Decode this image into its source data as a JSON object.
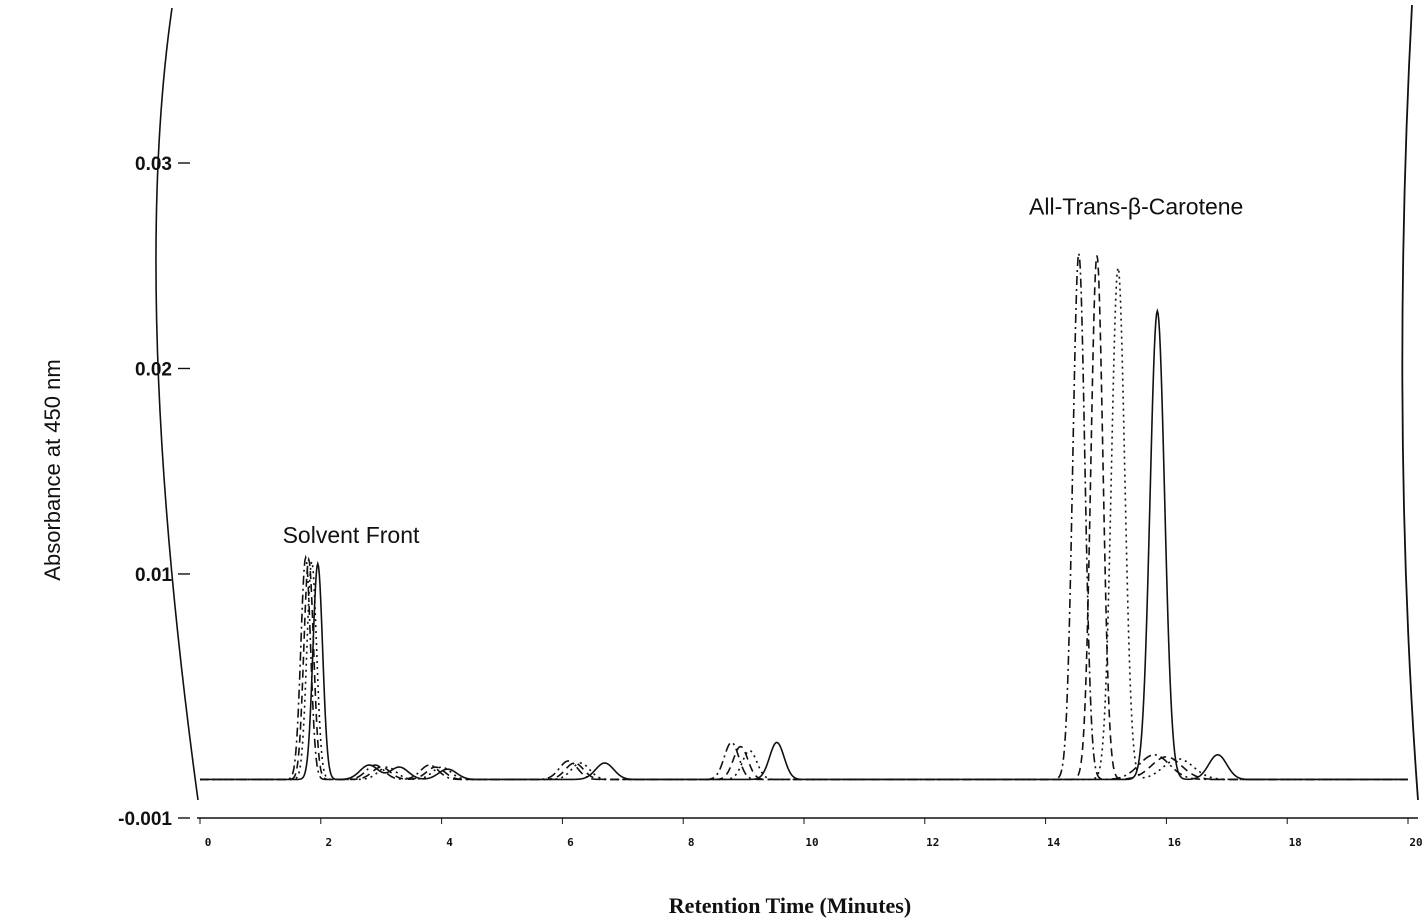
{
  "chart_data": {
    "type": "line",
    "xlabel": "Retention Time (Minutes)",
    "ylabel": "Absorbance at 450 nm",
    "xlim": [
      0,
      20
    ],
    "ylim": [
      -0.001,
      0.03
    ],
    "x_ticks": [
      {
        "value": 0,
        "label": "0"
      },
      {
        "value": 2,
        "label": "2"
      },
      {
        "value": 4,
        "label": "4"
      },
      {
        "value": 6,
        "label": "6"
      },
      {
        "value": 8,
        "label": "8"
      },
      {
        "value": 10,
        "label": "10"
      },
      {
        "value": 12,
        "label": "12"
      },
      {
        "value": 14,
        "label": "14"
      },
      {
        "value": 16,
        "label": "16"
      },
      {
        "value": 18,
        "label": "18"
      },
      {
        "value": 20,
        "label": "20"
      }
    ],
    "y_ticks": [
      {
        "value": -0.001,
        "label": "-0.001"
      },
      {
        "value": 0.01,
        "label": "0.01"
      },
      {
        "value": 0.02,
        "label": "0.02"
      },
      {
        "value": 0.03,
        "label": "0.03"
      }
    ],
    "annotations": [
      {
        "text": "Solvent Front",
        "x": 2.5,
        "y": 0.0115
      },
      {
        "text": "All-Trans-β-Carotene",
        "x": 15.5,
        "y": 0.0275
      }
    ],
    "baseline": 0.0,
    "series": [
      {
        "style": "dash-dot",
        "color": "#111111",
        "peaks": [
          {
            "x": 1.75,
            "height": 0.0108,
            "width": 0.08
          },
          {
            "x": 2.9,
            "height": 0.0007,
            "width": 0.15
          },
          {
            "x": 3.8,
            "height": 0.0007,
            "width": 0.15
          },
          {
            "x": 6.1,
            "height": 0.0009,
            "width": 0.15
          },
          {
            "x": 8.8,
            "height": 0.0018,
            "width": 0.12
          },
          {
            "x": 14.55,
            "height": 0.0256,
            "width": 0.1
          },
          {
            "x": 15.8,
            "height": 0.0012,
            "width": 0.25
          }
        ]
      },
      {
        "style": "dashed",
        "color": "#111111",
        "peaks": [
          {
            "x": 1.8,
            "height": 0.0107,
            "width": 0.08
          },
          {
            "x": 3.0,
            "height": 0.0006,
            "width": 0.15
          },
          {
            "x": 3.9,
            "height": 0.0006,
            "width": 0.15
          },
          {
            "x": 6.2,
            "height": 0.0008,
            "width": 0.15
          },
          {
            "x": 8.95,
            "height": 0.0016,
            "width": 0.12
          },
          {
            "x": 14.85,
            "height": 0.0255,
            "width": 0.1
          },
          {
            "x": 16.0,
            "height": 0.0011,
            "width": 0.25
          }
        ]
      },
      {
        "style": "dotted",
        "color": "#555555",
        "peaks": [
          {
            "x": 1.85,
            "height": 0.0106,
            "width": 0.08
          },
          {
            "x": 3.1,
            "height": 0.0006,
            "width": 0.15
          },
          {
            "x": 4.0,
            "height": 0.0006,
            "width": 0.15
          },
          {
            "x": 6.3,
            "height": 0.0008,
            "width": 0.15
          },
          {
            "x": 9.1,
            "height": 0.0014,
            "width": 0.12
          },
          {
            "x": 15.2,
            "height": 0.0249,
            "width": 0.11
          },
          {
            "x": 16.2,
            "height": 0.001,
            "width": 0.25
          }
        ]
      },
      {
        "style": "solid",
        "color": "#111111",
        "peaks": [
          {
            "x": 1.95,
            "height": 0.0105,
            "width": 0.08
          },
          {
            "x": 2.8,
            "height": 0.0007,
            "width": 0.15
          },
          {
            "x": 3.3,
            "height": 0.0006,
            "width": 0.15
          },
          {
            "x": 4.1,
            "height": 0.0005,
            "width": 0.15
          },
          {
            "x": 6.7,
            "height": 0.0008,
            "width": 0.15
          },
          {
            "x": 9.55,
            "height": 0.0018,
            "width": 0.12
          },
          {
            "x": 15.85,
            "height": 0.0228,
            "width": 0.12
          },
          {
            "x": 16.85,
            "height": 0.0012,
            "width": 0.15
          }
        ]
      }
    ]
  }
}
